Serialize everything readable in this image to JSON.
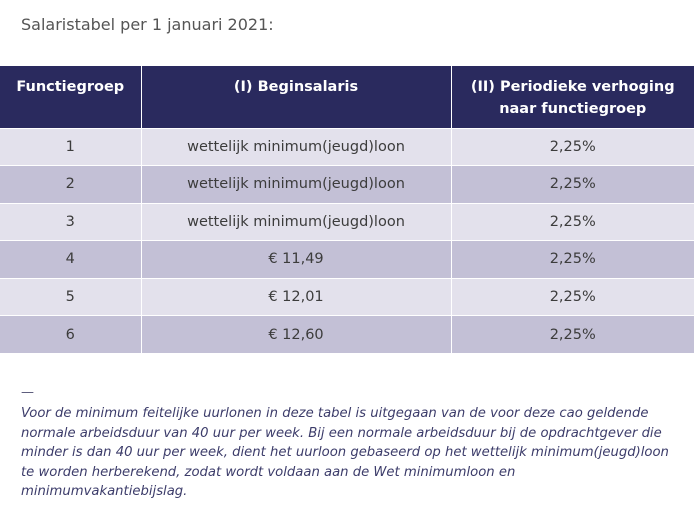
{
  "title": "Salaristabel per 1 januari 2021:",
  "table": {
    "headers": [
      "Functiegroep",
      "(I) Beginsalaris",
      "(II) Periodieke verhoging naar functiegroep"
    ],
    "rows": [
      {
        "groep": "1",
        "beginsalaris": "wettelijk minimum(jeugd)loon",
        "verhoging": "2,25%"
      },
      {
        "groep": "2",
        "beginsalaris": "wettelijk minimum(jeugd)loon",
        "verhoging": "2,25%"
      },
      {
        "groep": "3",
        "beginsalaris": "wettelijk minimum(jeugd)loon",
        "verhoging": "2,25%"
      },
      {
        "groep": "4",
        "beginsalaris": "€ 11,49",
        "verhoging": "2,25%"
      },
      {
        "groep": "5",
        "beginsalaris": "€ 12,01",
        "verhoging": "2,25%"
      },
      {
        "groep": "6",
        "beginsalaris": "€ 12,60",
        "verhoging": "2,25%"
      }
    ]
  },
  "footnote": {
    "marker": "—",
    "text": "Voor de minimum feitelijke uurlonen in deze tabel is uitgegaan van de voor deze cao geldende normale arbeidsduur van 40 uur per week. Bij een normale arbeidsduur bij de opdrachtgever die minder is dan 40 uur per week, dient het uurloon gebaseerd op het wettelijk minimum(jeugd)loon te worden herberekend, zodat wordt voldaan aan de Wet minimumloon en minimumvakantiebijslag."
  }
}
